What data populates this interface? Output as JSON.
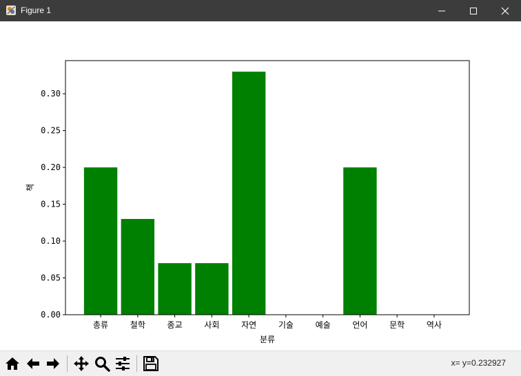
{
  "window": {
    "title": "Figure 1",
    "icons": [
      "app-icon",
      "minimize-icon",
      "maximize-icon",
      "close-icon"
    ]
  },
  "toolbar": {
    "buttons": [
      "home-icon",
      "back-icon",
      "forward-icon",
      "pan-icon",
      "zoom-icon",
      "configure-subplots-icon",
      "save-icon"
    ],
    "coordinate_readout": "x= y=0.232927"
  },
  "chart_data": {
    "type": "bar",
    "categories": [
      "총류",
      "철학",
      "종교",
      "사회",
      "자연",
      "기술",
      "예술",
      "언어",
      "문학",
      "역사"
    ],
    "values": [
      0.2,
      0.13,
      0.07,
      0.07,
      0.33,
      0.0,
      0.0,
      0.2,
      0.0,
      0.0
    ],
    "xlabel": "분류",
    "ylabel": "책",
    "ylim": [
      0,
      0.345
    ],
    "yticks": [
      "0.00",
      "0.05",
      "0.10",
      "0.15",
      "0.20",
      "0.25",
      "0.30"
    ],
    "bar_color": "#008000",
    "grid": false
  }
}
